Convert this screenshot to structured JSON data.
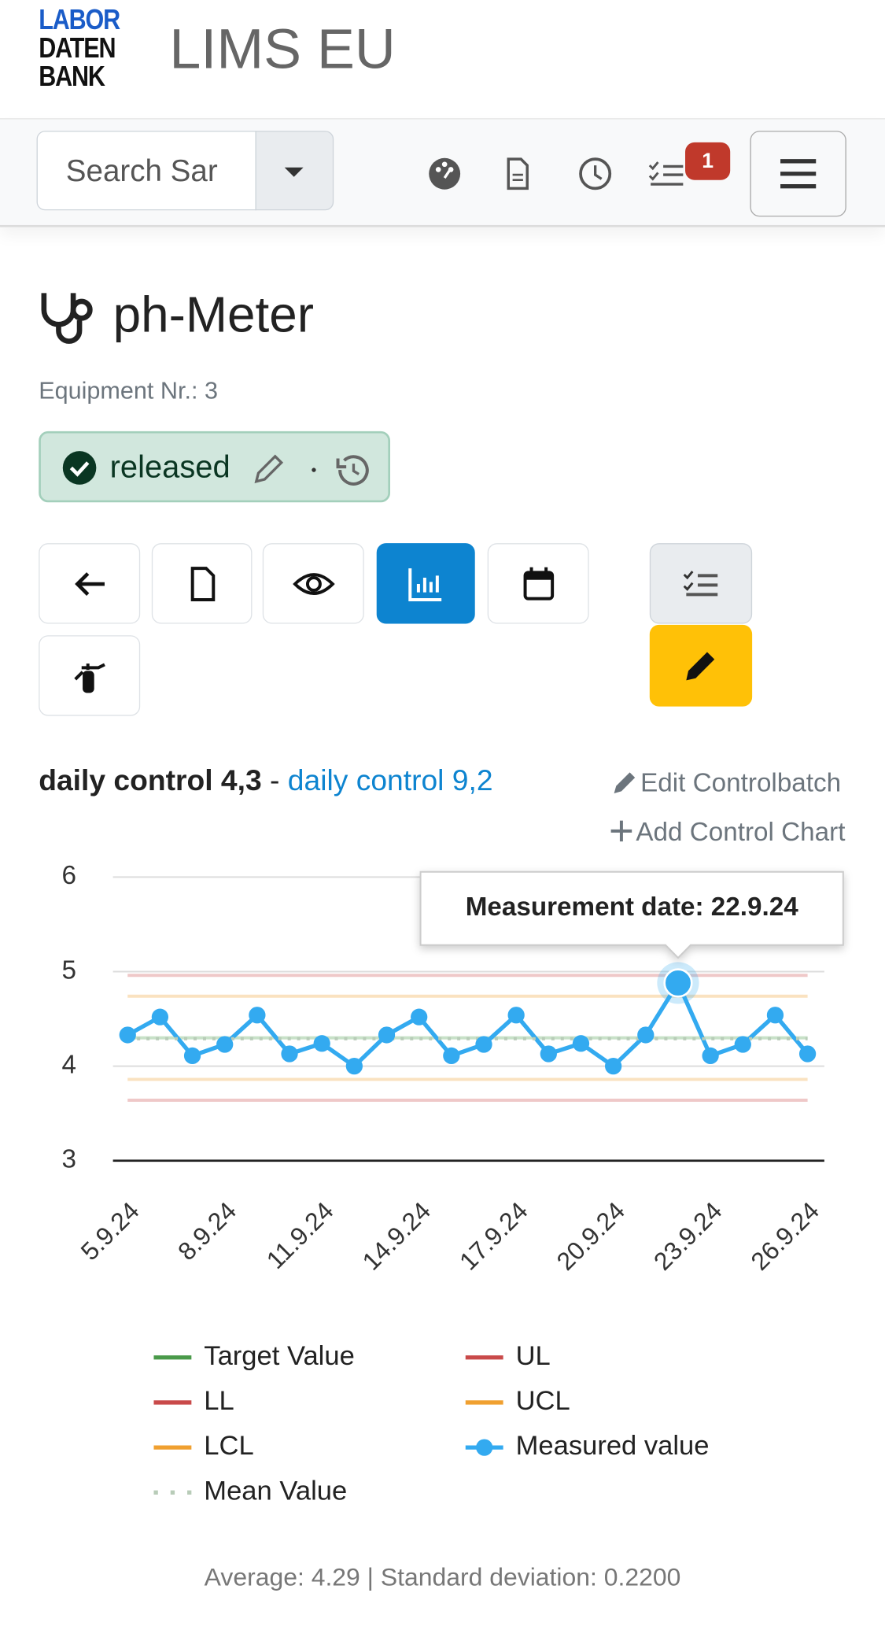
{
  "header": {
    "logo": [
      "LABOR",
      "DATEN",
      "BANK"
    ],
    "title": "LIMS EU"
  },
  "toolbar": {
    "search_placeholder": "Search Sar",
    "badge": "1"
  },
  "equipment": {
    "title": "ph-Meter",
    "number": "Equipment Nr.: 3",
    "status": "released"
  },
  "control": {
    "active": "daily control 4,3",
    "separator": "-",
    "link": "daily control 9,2",
    "edit": "Edit Controlbatch",
    "add": "Add Control Chart"
  },
  "stats": {
    "summary": "Average: 4.29 | Standard deviation: 0.2200"
  },
  "chart_data": {
    "type": "line",
    "categories": [
      "5.9.24",
      null,
      null,
      "8.9.24",
      null,
      null,
      "11.9.24",
      null,
      null,
      "14.9.24",
      null,
      null,
      "17.9.24",
      null,
      null,
      "20.9.24",
      null,
      null,
      "23.9.24",
      null,
      null,
      "26.9.24"
    ],
    "ylim": [
      3,
      6
    ],
    "yticks": [
      3,
      4,
      5,
      6
    ],
    "grid": true,
    "annotation": "Measurement date: 22.9.24",
    "series": [
      {
        "name": "Target Value",
        "color": "#4a9a4a",
        "value": 4.3
      },
      {
        "name": "UL",
        "color": "#c94a4a",
        "value": 4.96
      },
      {
        "name": "LL",
        "color": "#c94a4a",
        "value": 3.64
      },
      {
        "name": "UCL",
        "color": "#f0a030",
        "value": 4.74
      },
      {
        "name": "LCL",
        "color": "#f0a030",
        "value": 3.86
      },
      {
        "name": "Measured value",
        "color": "#33aaf0",
        "values": [
          4.33,
          4.52,
          4.11,
          4.23,
          4.54,
          4.13,
          4.24,
          4.0,
          4.33,
          4.52,
          4.11,
          4.23,
          4.54,
          4.13,
          4.24,
          4.0,
          4.33,
          4.88,
          4.11,
          4.23,
          4.54,
          4.13
        ]
      },
      {
        "name": "Mean Value",
        "color": "#b8ccb8",
        "value": 4.29,
        "line_style": "dotted"
      }
    ]
  }
}
